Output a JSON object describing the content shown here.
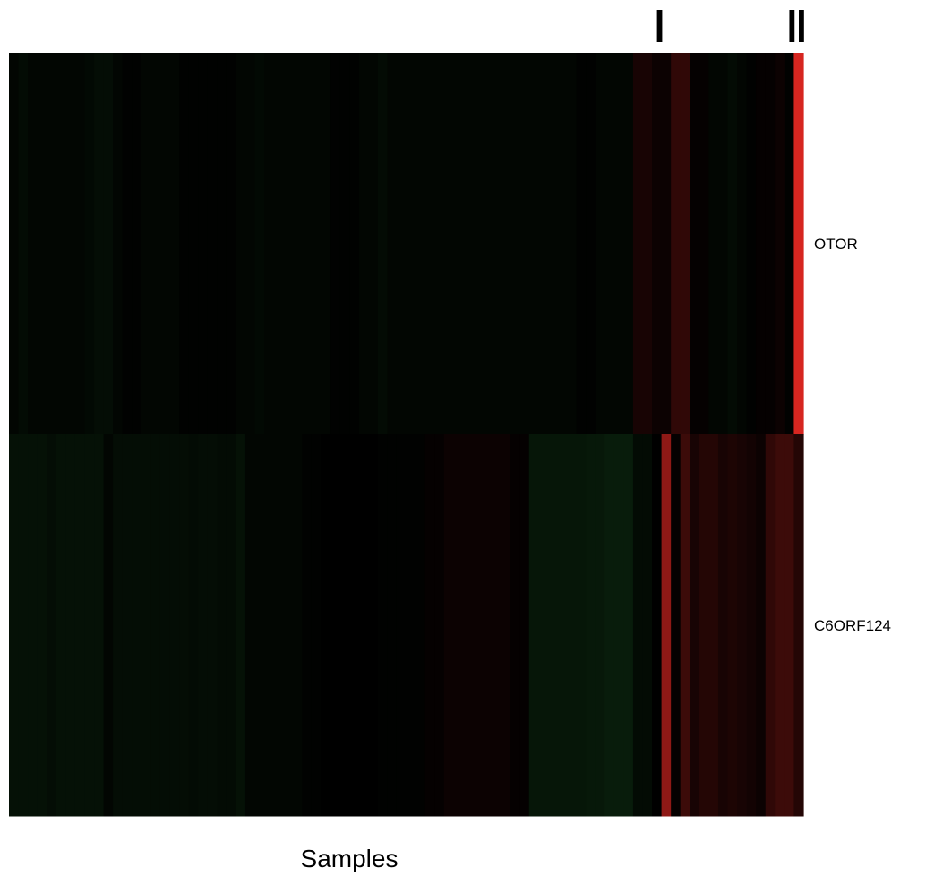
{
  "chart_data": {
    "type": "heatmap",
    "title": "",
    "xlabel": "Samples",
    "ylabel": "",
    "rows": [
      "OTOR",
      "C6ORF124"
    ],
    "n_columns": 84,
    "color_scale": {
      "negative": "#1f6e2a",
      "zero": "#000000",
      "positive": "#ee2a24",
      "range": [
        -1,
        1
      ]
    },
    "values": [
      [
        -0.05,
        -0.1,
        -0.05,
        -0.05,
        -0.05,
        -0.05,
        -0.05,
        -0.05,
        -0.08,
        -0.12,
        -0.12,
        -0.05,
        -0.02,
        -0.02,
        -0.05,
        -0.05,
        -0.05,
        -0.05,
        -0.02,
        -0.02,
        -0.02,
        -0.02,
        -0.02,
        -0.02,
        -0.05,
        -0.05,
        -0.08,
        -0.05,
        -0.05,
        -0.05,
        -0.05,
        -0.05,
        -0.05,
        -0.05,
        -0.02,
        -0.02,
        -0.02,
        -0.05,
        -0.05,
        -0.1,
        -0.05,
        -0.05,
        -0.05,
        -0.05,
        -0.05,
        -0.05,
        -0.05,
        -0.05,
        -0.05,
        -0.05,
        -0.05,
        -0.05,
        -0.05,
        -0.05,
        -0.05,
        -0.05,
        -0.05,
        -0.05,
        -0.05,
        -0.05,
        -0.02,
        -0.02,
        -0.05,
        -0.05,
        -0.05,
        -0.05,
        0.1,
        0.1,
        0.05,
        0.05,
        0.2,
        0.2,
        0.02,
        0.02,
        -0.05,
        -0.05,
        -0.1,
        -0.05,
        -0.02,
        0.02,
        0.02,
        0.05,
        -0.02,
        0.9
      ],
      [
        -0.15,
        -0.15,
        -0.15,
        -0.15,
        -0.12,
        -0.15,
        -0.15,
        -0.15,
        -0.15,
        -0.15,
        -0.05,
        -0.12,
        -0.12,
        -0.12,
        -0.12,
        -0.12,
        -0.12,
        -0.12,
        -0.12,
        -0.1,
        -0.12,
        -0.12,
        -0.1,
        -0.1,
        -0.15,
        -0.05,
        -0.05,
        -0.05,
        -0.05,
        -0.05,
        -0.05,
        -0.02,
        -0.02,
        0.0,
        0.0,
        0.0,
        0.0,
        0.0,
        0.0,
        -0.02,
        -0.02,
        -0.02,
        -0.02,
        -0.02,
        0.02,
        0.02,
        0.05,
        0.05,
        0.05,
        0.05,
        0.05,
        0.05,
        0.05,
        0.02,
        0.02,
        -0.2,
        -0.2,
        -0.2,
        -0.2,
        -0.2,
        -0.2,
        -0.22,
        -0.22,
        -0.25,
        -0.25,
        -0.25,
        -0.1,
        -0.1,
        0.0,
        0.6,
        0.02,
        0.25,
        0.1,
        0.15,
        0.15,
        0.1,
        0.12,
        0.1,
        0.08,
        0.05,
        0.2,
        0.25,
        0.25,
        0.15
      ]
    ],
    "column_markers": [
      69,
      83,
      84
    ],
    "grid": false,
    "legend": "none"
  }
}
